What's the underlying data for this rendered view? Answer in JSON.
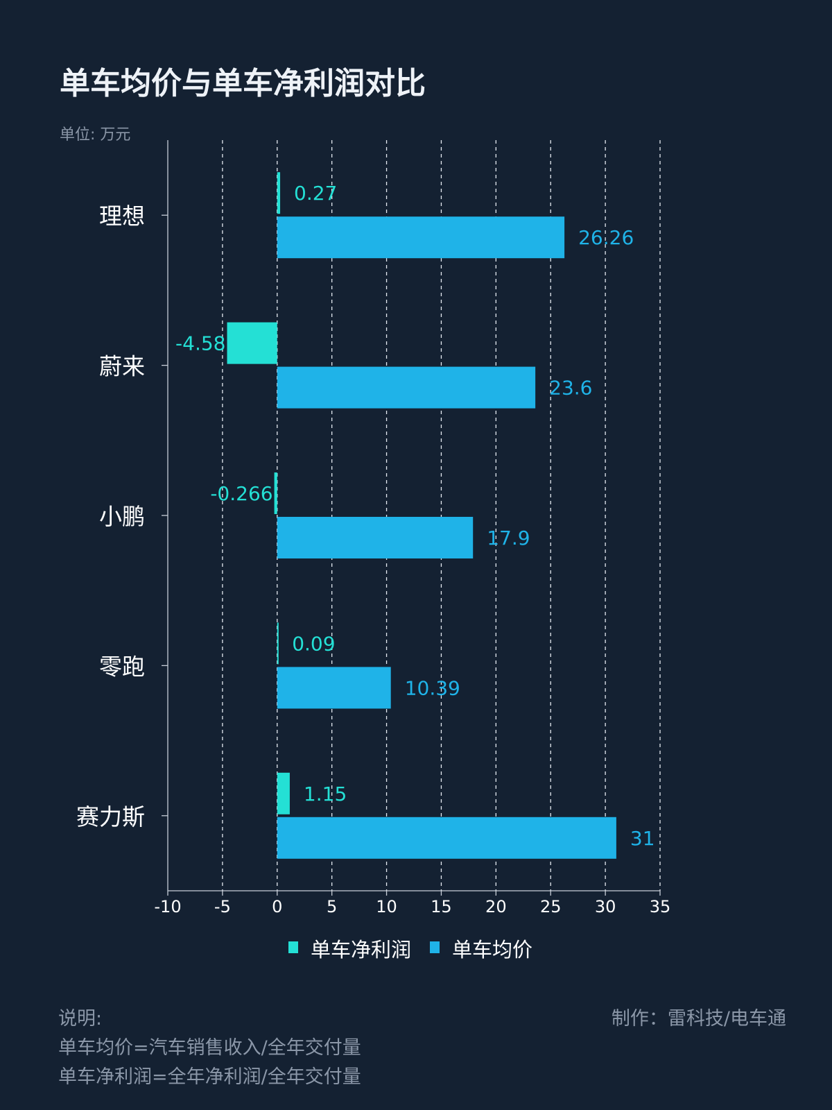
{
  "chart_data": {
    "type": "bar",
    "orientation": "horizontal",
    "title": "单车均价与单车净利润对比",
    "unit_label": "单位: 万元",
    "categories": [
      "理想",
      "蔚来",
      "小鹏",
      "零跑",
      "赛力斯"
    ],
    "series": [
      {
        "name": "单车净利润",
        "color": "#24e0d5",
        "values": [
          0.27,
          -4.58,
          -0.266,
          0.09,
          1.15
        ],
        "labels": [
          "0.27",
          "-4.58",
          "-0.266",
          "0.09",
          "1.15"
        ]
      },
      {
        "name": "单车均价",
        "color": "#1fb3e8",
        "values": [
          26.26,
          23.6,
          17.9,
          10.39,
          31
        ],
        "labels": [
          "26.26",
          "23.6",
          "17.9",
          "10.39",
          "31"
        ]
      }
    ],
    "xlim": [
      -10,
      35
    ],
    "xticks": [
      "-10",
      "-5",
      "0",
      "5",
      "10",
      "15",
      "20",
      "25",
      "30",
      "35"
    ],
    "grid": "vertical dashed",
    "legend": "bottom"
  },
  "notes": {
    "heading": "说明:",
    "lines": [
      "单车均价=汽车销售收入/全年交付量",
      "单车净利润=全年净利润/全年交付量"
    ]
  },
  "credit": "制作：雷科技/电车通"
}
